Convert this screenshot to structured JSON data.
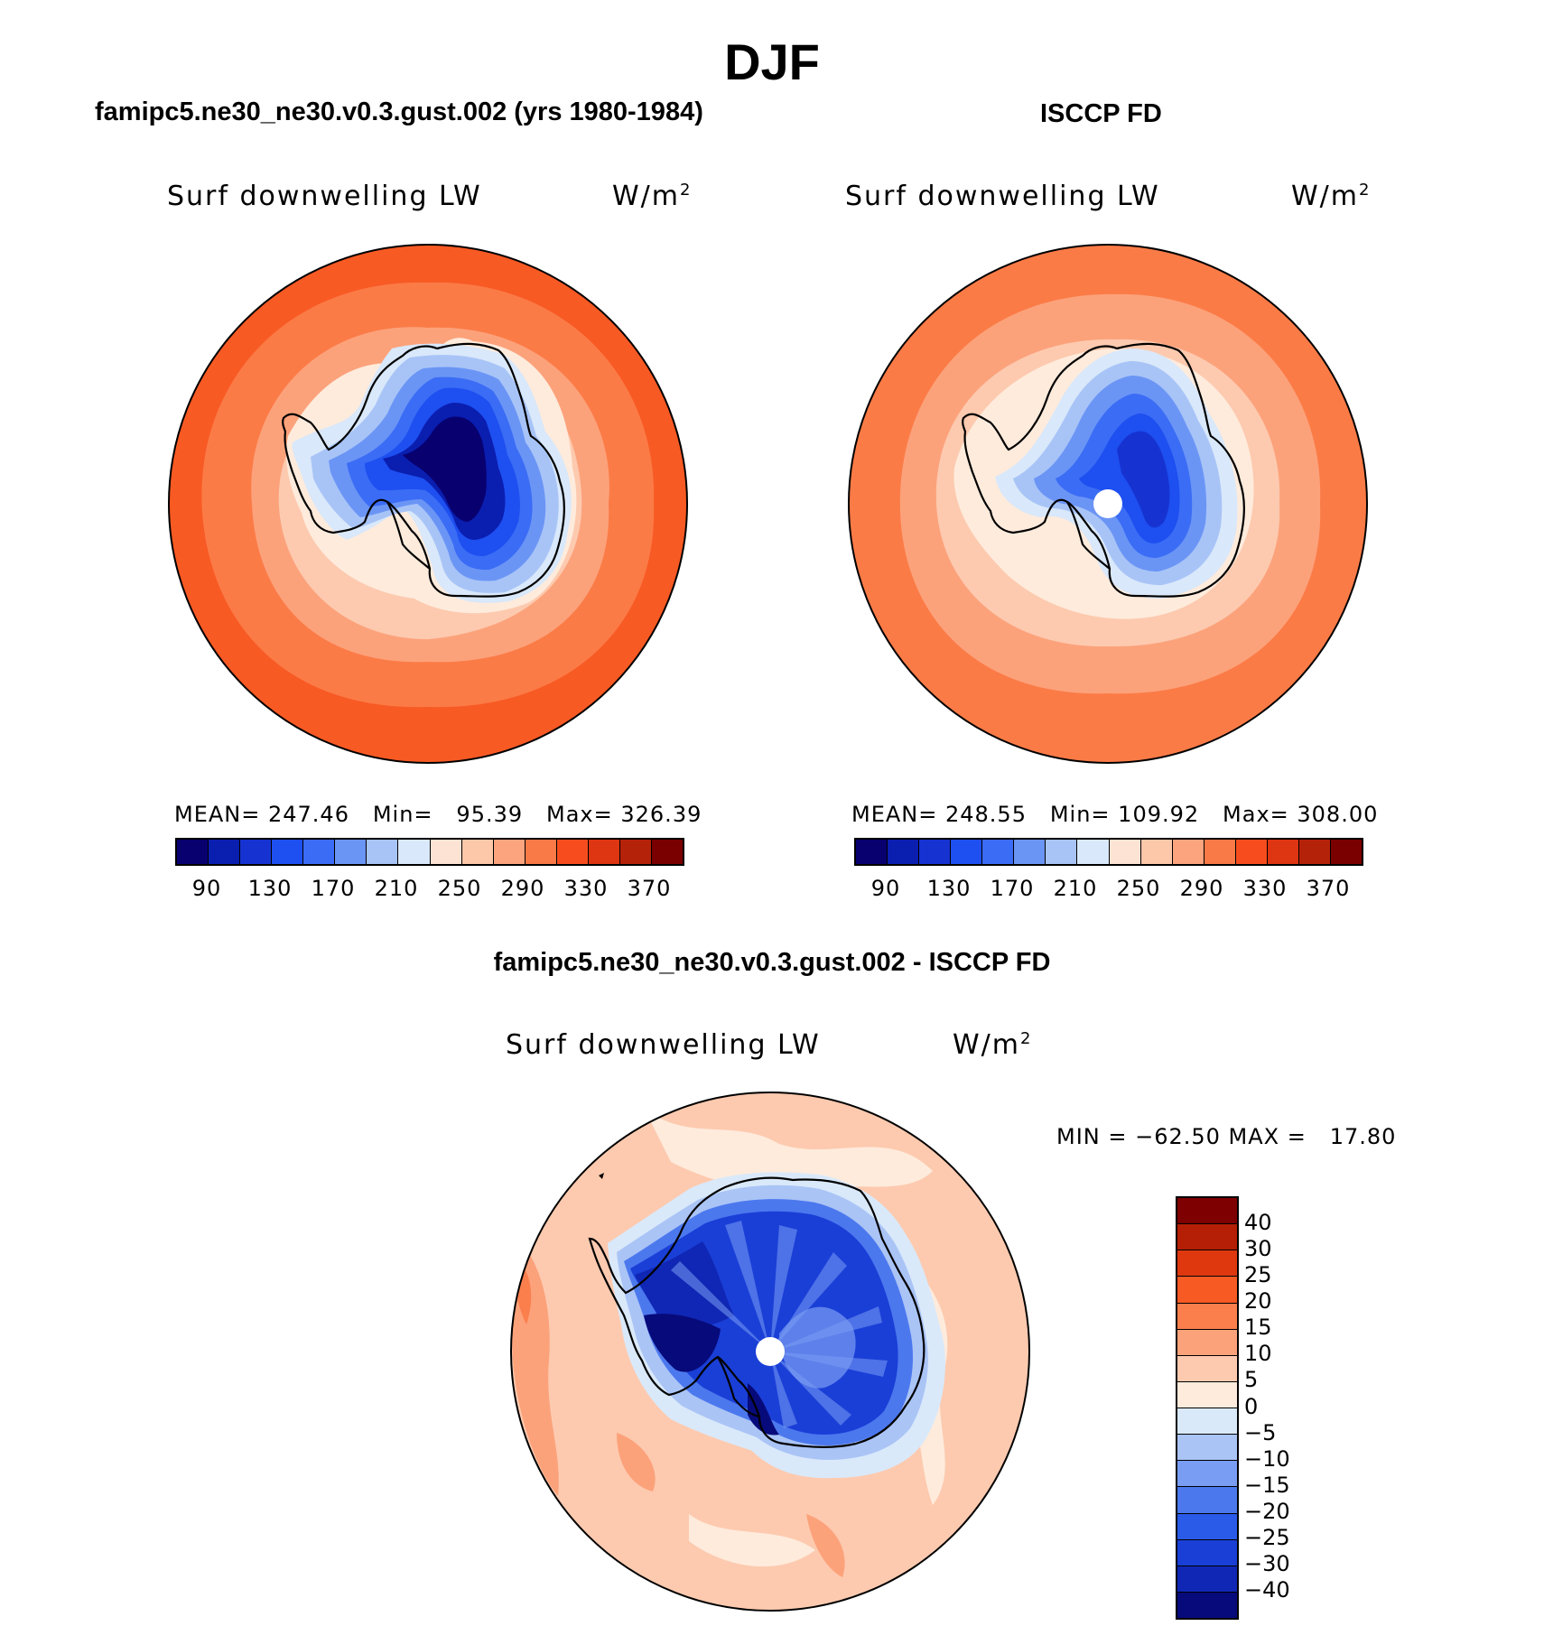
{
  "title": "DJF",
  "panels": {
    "model": {
      "title": "famipc5.ne30_ne30.v0.3.gust.002 (yrs 1980-1984)",
      "variable": "Surf downwelling LW",
      "units": "W/m",
      "units_sup": "2",
      "stats": "MEAN= 247.46   Min=   95.39   Max= 326.39"
    },
    "obs": {
      "title": "ISCCP FD",
      "variable": "Surf downwelling LW",
      "units": "W/m",
      "units_sup": "2",
      "stats": "MEAN= 248.55   Min= 109.92   Max= 308.00"
    },
    "diff": {
      "title": "famipc5.ne30_ne30.v0.3.gust.002 - ISCCP FD",
      "variable": "Surf downwelling LW",
      "units": "W/m",
      "units_sup": "2",
      "stats": "MIN = −62.50 MAX =   17.80"
    }
  },
  "abs_colorbar": {
    "colors": [
      "#08006f",
      "#0a1eb0",
      "#1633d2",
      "#1e4ff0",
      "#3b6cf5",
      "#6b95f5",
      "#a8c4f7",
      "#d9e8fa",
      "#fde3d3",
      "#fdc7aa",
      "#fca47e",
      "#f97a47",
      "#f74d1e",
      "#de3512",
      "#b5220a",
      "#7a0000"
    ],
    "tick_labels": [
      "90",
      "130",
      "170",
      "210",
      "250",
      "290",
      "330",
      "370"
    ]
  },
  "diff_colorbar": {
    "colors": [
      "#7f0000",
      "#b51f05",
      "#df380f",
      "#f85a24",
      "#fb7f4d",
      "#fca27b",
      "#fdcaaf",
      "#feebdc",
      "#d9e9fa",
      "#aac4f6",
      "#7a9df4",
      "#4c78ee",
      "#2a5ae8",
      "#1a3fd7",
      "#1027b5",
      "#070a7a"
    ],
    "tick_labels": [
      "40",
      "30",
      "25",
      "20",
      "15",
      "10",
      "5",
      "0",
      "−5",
      "−10",
      "−15",
      "−20",
      "−25",
      "−30",
      "−40"
    ]
  },
  "map_colors": {
    "model": {
      "ring1": "#f85a24",
      "ring2": "#fb7b47",
      "ring3": "#fca27b",
      "ring4": "#fdcaaf",
      "ring5": "#feebdc",
      "ice1": "#d9e8fa",
      "ice2": "#a8c4f7",
      "ice3": "#6b95f5",
      "ice4": "#3b6cf5",
      "ice5": "#1e4ff0",
      "ice6": "#0a1eb0",
      "ice7": "#08006f"
    },
    "obs": {
      "ring1": "#fb7b47",
      "ring2": "#fca27b",
      "ring3": "#fdcaaf",
      "ring4": "#feebdc",
      "ice1": "#d9e8fa",
      "ice2": "#a8c4f7",
      "ice3": "#6b95f5",
      "ice4": "#3b6cf5",
      "ice5": "#1e4ff0",
      "ice6": "#1633d2"
    },
    "diff": {
      "bg": "#fdcaaf",
      "pale": "#feebdc",
      "warm": "#fca27b",
      "hot": "#fb7f4d",
      "ice1": "#d9e9fa",
      "ice2": "#aac4f6",
      "ice3": "#4c78ee",
      "ice4": "#1a3fd7",
      "ice5": "#1027b5",
      "ice6": "#070a7a",
      "streak": "#7a9df4"
    }
  }
}
